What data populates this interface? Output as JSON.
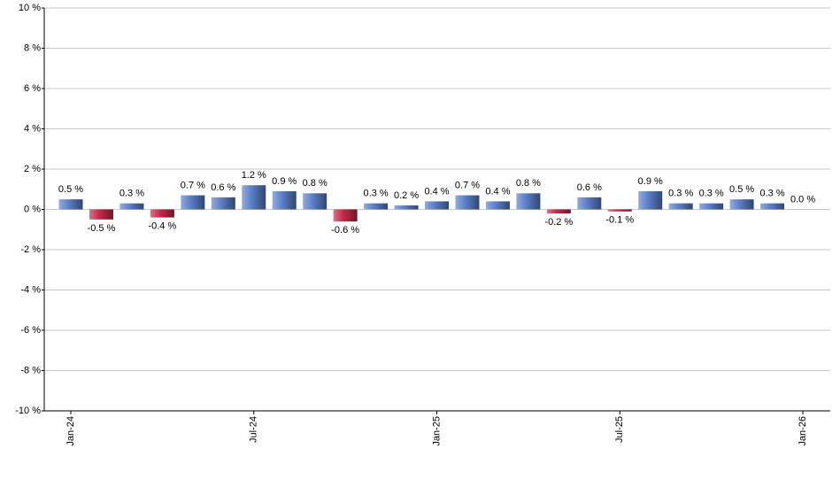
{
  "chart_data": {
    "type": "bar",
    "categories": [
      "Jan-24",
      null,
      null,
      null,
      null,
      null,
      "Jul-24",
      null,
      null,
      null,
      null,
      null,
      "Jan-25",
      null,
      null,
      null,
      null,
      null,
      "Jul-25",
      null,
      null,
      null,
      null,
      null,
      "Jan-26"
    ],
    "values": [
      0.5,
      -0.5,
      0.3,
      -0.4,
      0.7,
      0.6,
      1.2,
      0.9,
      0.8,
      -0.6,
      0.3,
      0.2,
      0.4,
      0.7,
      0.4,
      0.8,
      -0.2,
      0.6,
      -0.1,
      0.9,
      0.3,
      0.3,
      0.5,
      0.3,
      0.0
    ],
    "value_labels": [
      "0.5 %",
      "-0.5 %",
      "0.3 %",
      "-0.4 %",
      "0.7 %",
      "0.6 %",
      "1.2 %",
      "0.9 %",
      "0.8 %",
      "-0.6 %",
      "0.3 %",
      "0.2 %",
      "0.4 %",
      "0.7 %",
      "0.4 %",
      "0.8 %",
      "-0.2 %",
      "0.6 %",
      "-0.1 %",
      "0.9 %",
      "0.3 %",
      "0.3 %",
      "0.5 %",
      "0.3 %",
      "0.0 %"
    ],
    "positive_color": "#5b7fc9",
    "negative_color": "#c8284a",
    "ylim": [
      -10,
      10
    ],
    "yticks": [
      {
        "value": -10,
        "label": "-10 %"
      },
      {
        "value": -8,
        "label": "-8 %"
      },
      {
        "value": -6,
        "label": "-6 %"
      },
      {
        "value": -4,
        "label": "-4 %"
      },
      {
        "value": -2,
        "label": "-2 %"
      },
      {
        "value": 0,
        "label": "0 %"
      },
      {
        "value": 2,
        "label": "2 %"
      },
      {
        "value": 4,
        "label": "4 %"
      },
      {
        "value": 6,
        "label": "6 %"
      },
      {
        "value": 8,
        "label": "8 %"
      },
      {
        "value": 10,
        "label": "10 %"
      }
    ],
    "grid": true
  }
}
